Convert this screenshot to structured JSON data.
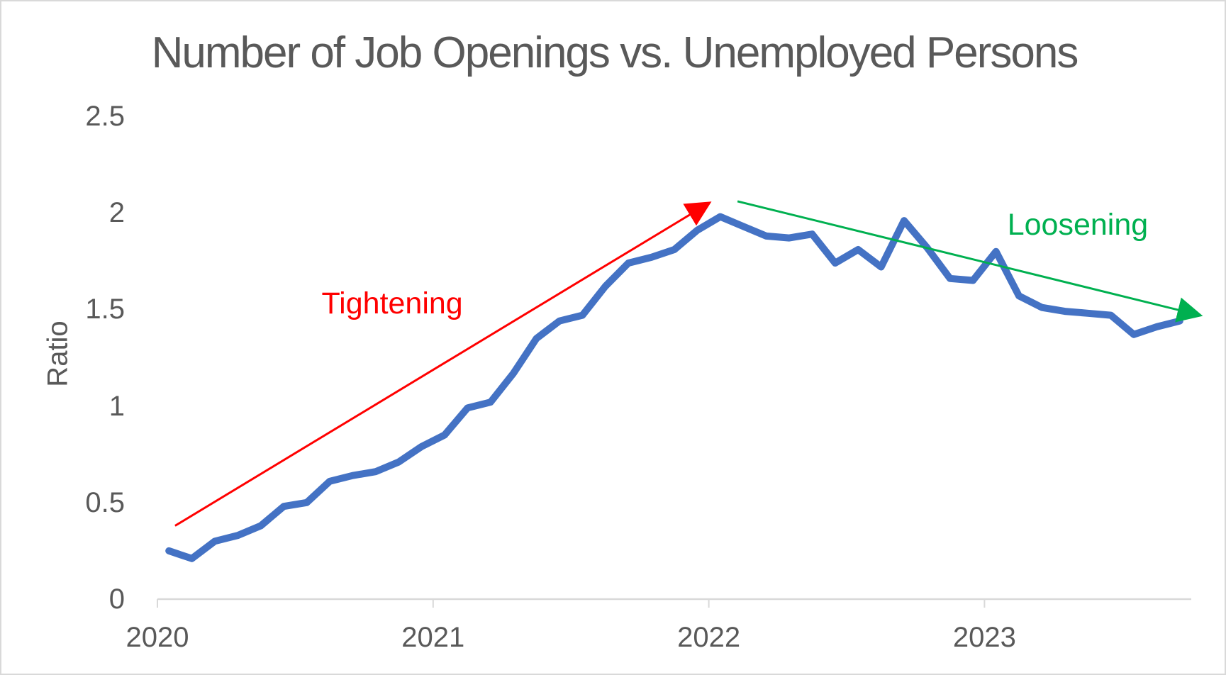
{
  "page": {
    "background": "#ffffff",
    "border_color": "#d9d9d9"
  },
  "chart_data": {
    "type": "line",
    "title": "Number of Job Openings vs. Unemployed Persons",
    "xlabel": "",
    "ylabel": "Ratio",
    "ylim": [
      0,
      2.5
    ],
    "y_ticks": [
      "0",
      "0.5",
      "1",
      "1.5",
      "2",
      "2.5"
    ],
    "y_tick_values": [
      0,
      0.5,
      1,
      1.5,
      2,
      2.5
    ],
    "grid": false,
    "legend": false,
    "axis_color": "#d9d9d9",
    "text_color": "#595959",
    "x_year_ticks": [
      {
        "label": "2020",
        "month_index": 0
      },
      {
        "label": "2021",
        "month_index": 12
      },
      {
        "label": "2022",
        "month_index": 24
      },
      {
        "label": "2023",
        "month_index": 36
      }
    ],
    "months": [
      "2020-01",
      "2020-02",
      "2020-03",
      "2020-04",
      "2020-05",
      "2020-06",
      "2020-07",
      "2020-08",
      "2020-09",
      "2020-10",
      "2020-11",
      "2020-12",
      "2021-01",
      "2021-02",
      "2021-03",
      "2021-04",
      "2021-05",
      "2021-06",
      "2021-07",
      "2021-08",
      "2021-09",
      "2021-10",
      "2021-11",
      "2021-12",
      "2022-01",
      "2022-02",
      "2022-03",
      "2022-04",
      "2022-05",
      "2022-06",
      "2022-07",
      "2022-08",
      "2022-09",
      "2022-10",
      "2022-11",
      "2022-12",
      "2023-01",
      "2023-02",
      "2023-03",
      "2023-04",
      "2023-05",
      "2023-06",
      "2023-07",
      "2023-08",
      "2023-09"
    ],
    "series": [
      {
        "name": "Ratio of job openings to unemployed persons",
        "color": "#4472C4",
        "values": [
          0.25,
          0.21,
          0.3,
          0.33,
          0.38,
          0.48,
          0.5,
          0.61,
          0.64,
          0.66,
          0.71,
          0.79,
          0.85,
          0.99,
          1.02,
          1.17,
          1.35,
          1.44,
          1.47,
          1.62,
          1.74,
          1.77,
          1.81,
          1.91,
          1.98,
          1.93,
          1.88,
          1.87,
          1.89,
          1.74,
          1.81,
          1.72,
          1.96,
          1.82,
          1.66,
          1.65,
          1.8,
          1.57,
          1.51,
          1.49,
          1.48,
          1.47,
          1.37,
          1.41,
          1.44
        ]
      }
    ],
    "annotations": [
      {
        "id": "tightening",
        "label": "Tightening",
        "color": "#FF0000",
        "arrow": {
          "from": {
            "month": 0.27,
            "value": 0.38
          },
          "to": {
            "month": 23.5,
            "value": 2.05
          }
        },
        "label_center": {
          "month": 9.72,
          "value": 1.53
        }
      },
      {
        "id": "loosening",
        "label": "Loosening",
        "color": "#00B050",
        "arrow": {
          "from": {
            "month": 24.75,
            "value": 2.06
          },
          "to": {
            "month": 44.87,
            "value": 1.47
          }
        },
        "label_center": {
          "month": 39.56,
          "value": 1.94
        }
      }
    ]
  }
}
